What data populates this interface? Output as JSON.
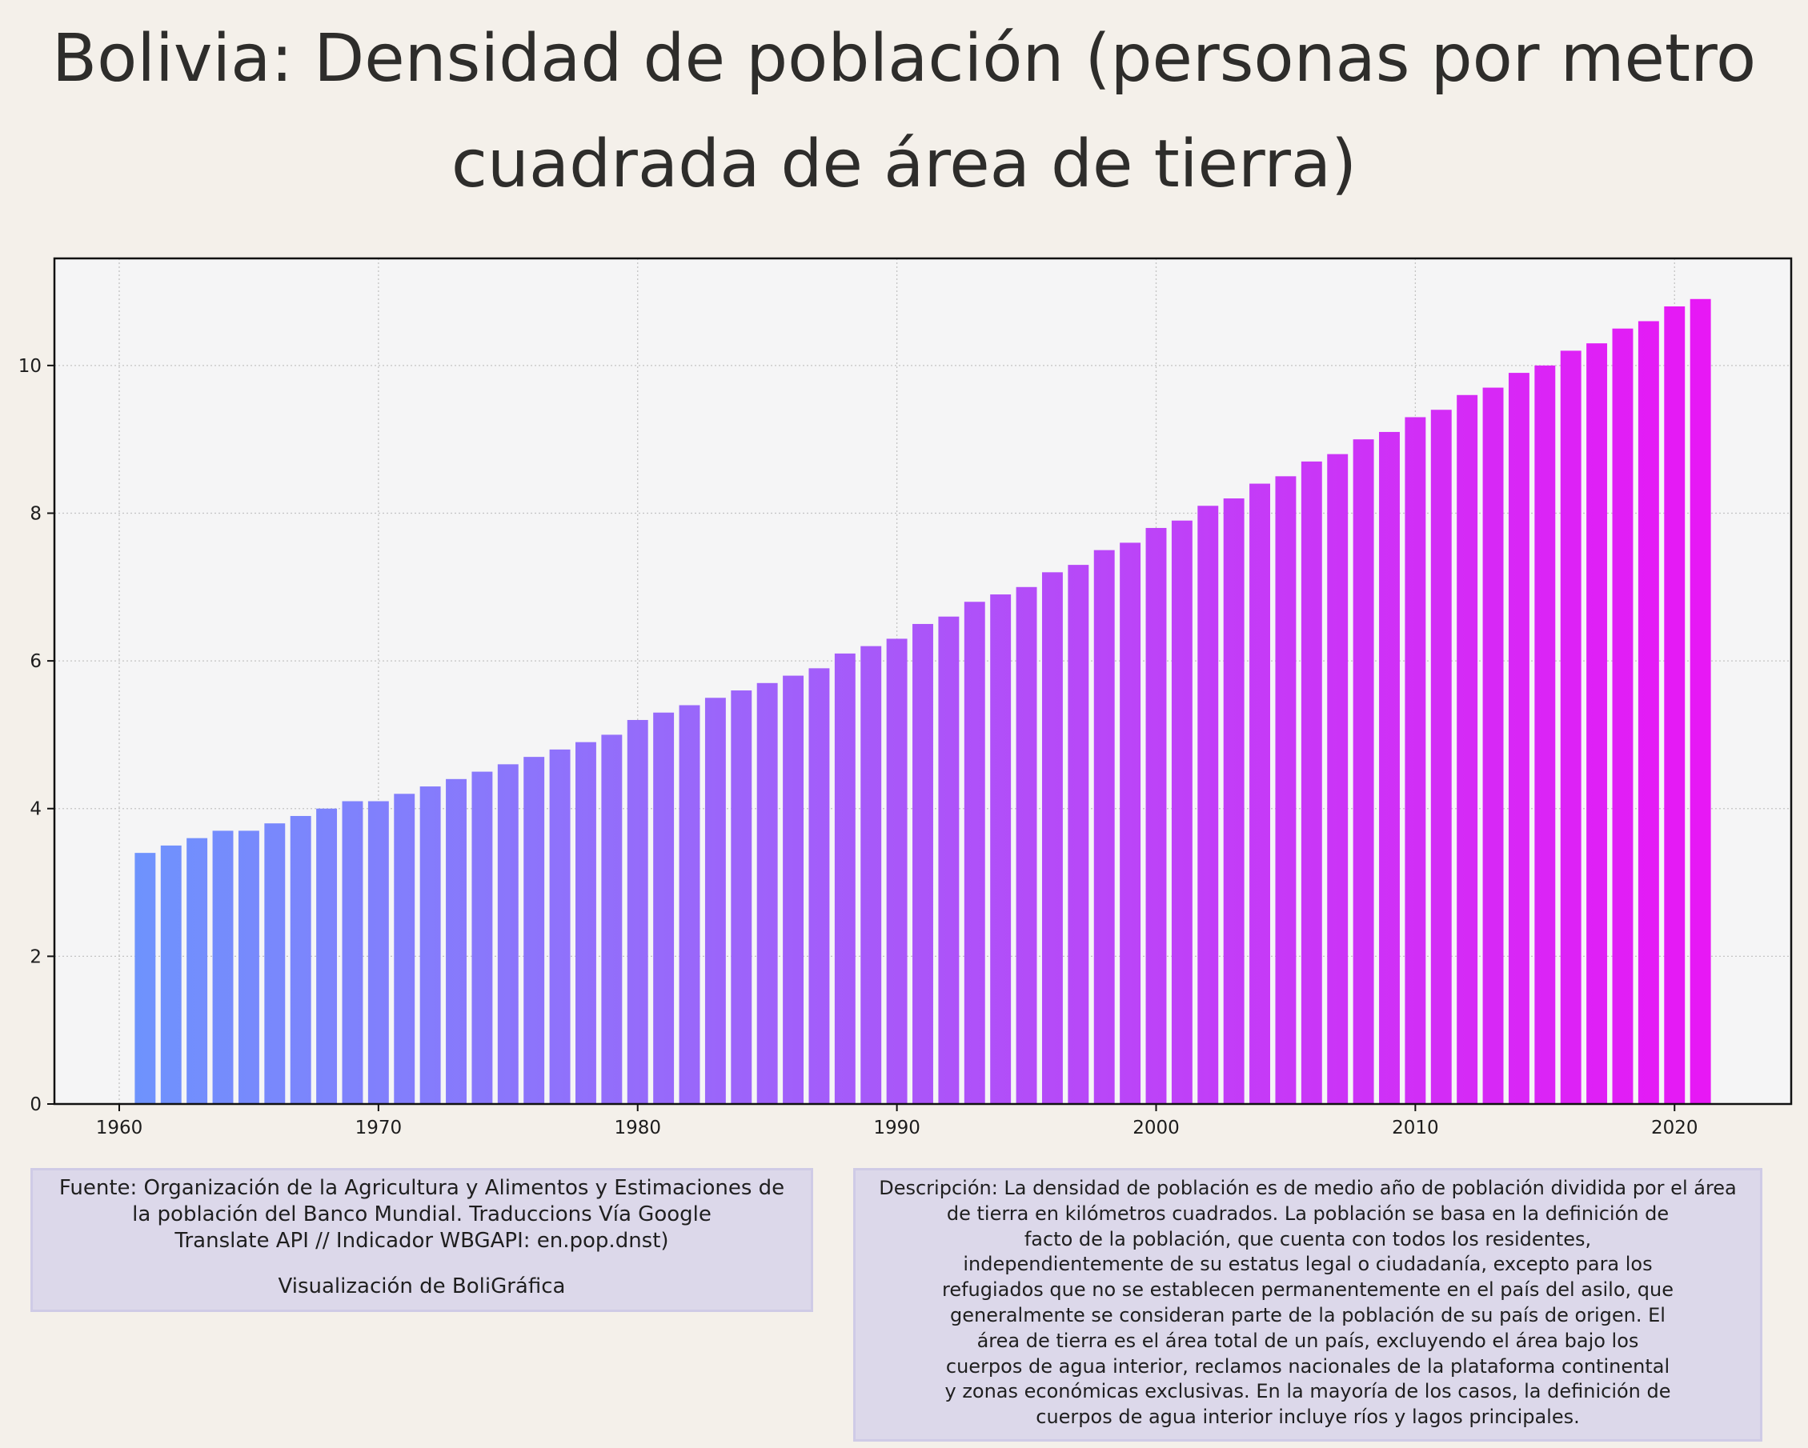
{
  "title": {
    "line1": "Bolivia:  Densidad de población (personas por metro",
    "line2": "cuadrada de área de tierra)"
  },
  "colors": {
    "background": "#f4f0ea",
    "plot_background": "#f5f5f6",
    "bar_start": "#6e93fd",
    "bar_end": "#e817f5",
    "note_background": "#dcd8ea"
  },
  "notes": {
    "source_lines": [
      "Fuente: Organización de la Agricultura y Alimentos y Estimaciones de",
      "la población del Banco Mundial. Traduccions Vía Google",
      "Translate API // Indicador WBGAPI: en.pop.dnst)"
    ],
    "credit": "Visualización de BoliGráfica",
    "description_lines": [
      "Descripción: La densidad de población es de medio año de población dividida por el área",
      "de tierra en kilómetros cuadrados. La población se basa en la definición de",
      "facto de la población, que cuenta con todos los residentes,",
      "independientemente de su estatus legal o ciudadanía, excepto para los",
      "refugiados que no se establecen permanentemente en el país del asilo, que",
      "generalmente se consideran parte de la población de su país de origen. El",
      "área de tierra es el área total de un país, excluyendo el área bajo los",
      "cuerpos de agua interior, reclamos nacionales de la plataforma continental",
      "y zonas económicas exclusivas. En la mayoría de los casos, la definición de",
      "cuerpos de agua interior incluye ríos y lagos principales."
    ]
  },
  "chart_data": {
    "type": "bar",
    "title": "Bolivia:  Densidad de población (personas por metro cuadrada de área de tierra)",
    "xlabel": "",
    "ylabel": "",
    "x": [
      1961,
      1962,
      1963,
      1964,
      1965,
      1966,
      1967,
      1968,
      1969,
      1970,
      1971,
      1972,
      1973,
      1974,
      1975,
      1976,
      1977,
      1978,
      1979,
      1980,
      1981,
      1982,
      1983,
      1984,
      1985,
      1986,
      1987,
      1988,
      1989,
      1990,
      1991,
      1992,
      1993,
      1994,
      1995,
      1996,
      1997,
      1998,
      1999,
      2000,
      2001,
      2002,
      2003,
      2004,
      2005,
      2006,
      2007,
      2008,
      2009,
      2010,
      2011,
      2012,
      2013,
      2014,
      2015,
      2016,
      2017,
      2018,
      2019,
      2020,
      2021
    ],
    "values": [
      3.4,
      3.5,
      3.6,
      3.7,
      3.7,
      3.8,
      3.9,
      4.0,
      4.1,
      4.1,
      4.2,
      4.3,
      4.4,
      4.5,
      4.6,
      4.7,
      4.8,
      4.9,
      5.0,
      5.2,
      5.3,
      5.4,
      5.5,
      5.6,
      5.7,
      5.8,
      5.9,
      6.1,
      6.2,
      6.3,
      6.5,
      6.6,
      6.8,
      6.9,
      7.0,
      7.2,
      7.3,
      7.5,
      7.6,
      7.8,
      7.9,
      8.1,
      8.2,
      8.4,
      8.5,
      8.7,
      8.8,
      9.0,
      9.1,
      9.3,
      9.4,
      9.6,
      9.7,
      9.9,
      10.0,
      10.2,
      10.3,
      10.5,
      10.6,
      10.8,
      10.9
    ],
    "xlim": [
      1957.5,
      2024.5
    ],
    "ylim": [
      0,
      11.45
    ],
    "xticks": [
      1960,
      1970,
      1980,
      1990,
      2000,
      2010,
      2020
    ],
    "xtick_labels": [
      "1960",
      "1970",
      "1980",
      "1990",
      "2000",
      "2010",
      "2020"
    ],
    "yticks": [
      0,
      2,
      4,
      6,
      8,
      10
    ],
    "ytick_labels": [
      "0",
      "2",
      "4",
      "6",
      "8",
      "10"
    ],
    "grid": true,
    "legend": "none"
  }
}
